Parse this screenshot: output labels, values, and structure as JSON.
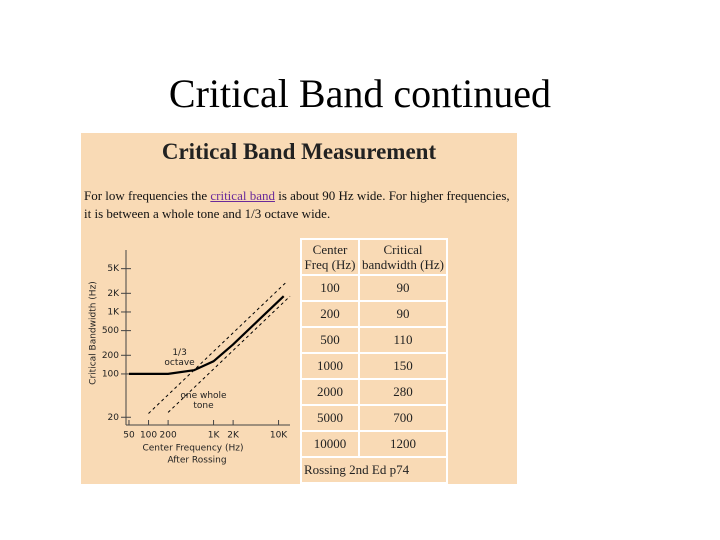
{
  "slide": {
    "title": "Critical Band continued"
  },
  "panel": {
    "title": "Critical Band Measurement",
    "intro": {
      "before": "For low frequencies the ",
      "link": "critical band",
      "after": " is about 90 Hz wide. For higher frequencies, it is between a whole tone and 1/3 octave wide."
    }
  },
  "chart_data": {
    "type": "line",
    "log_x": true,
    "log_y": true,
    "y_label": "Critical Bandwidth (Hz)",
    "x_label": "Center Frequency (Hz)",
    "note": "After Rossing",
    "xlim": [
      45,
      15000
    ],
    "ylim": [
      15,
      10000
    ],
    "xticks": [
      50,
      100,
      200,
      {
        "value": 1000,
        "label": "1K"
      },
      {
        "value": 2000,
        "label": "2K"
      },
      {
        "value": 10000,
        "label": "10K"
      }
    ],
    "yticks": [
      {
        "value": 5000,
        "label": "5K"
      },
      {
        "value": 2000,
        "label": "2K"
      },
      {
        "value": 1000,
        "label": "1K"
      },
      500,
      200,
      100,
      20
    ],
    "series": [
      {
        "color": "#000000",
        "style": "solid",
        "x": [
          50,
          200,
          500,
          1000,
          2000,
          5000,
          12000
        ],
        "y": [
          100,
          100,
          115,
          160,
          300,
          750,
          1800
        ]
      },
      {
        "color": "#000000",
        "style": "dashed",
        "x": [
          100,
          13000
        ],
        "y": [
          23,
          3000
        ]
      },
      {
        "color": "#000000",
        "style": "dashed",
        "x": [
          200,
          15000
        ],
        "y": [
          24,
          1800
        ]
      }
    ],
    "annotations": [
      {
        "lines": [
          "1/3",
          "octave"
        ],
        "x": 300,
        "y": 220
      },
      {
        "lines": [
          "one whole",
          "tone"
        ],
        "x": 700,
        "y": 45
      }
    ]
  },
  "table": {
    "header": [
      "Center Freq (Hz)",
      "Critical bandwidth (Hz)"
    ],
    "rows": [
      [
        "100",
        "90"
      ],
      [
        "200",
        "90"
      ],
      [
        "500",
        "110"
      ],
      [
        "1000",
        "150"
      ],
      [
        "2000",
        "280"
      ],
      [
        "5000",
        "700"
      ],
      [
        "10000",
        "1200"
      ]
    ],
    "caption": "Rossing 2nd Ed p74"
  }
}
